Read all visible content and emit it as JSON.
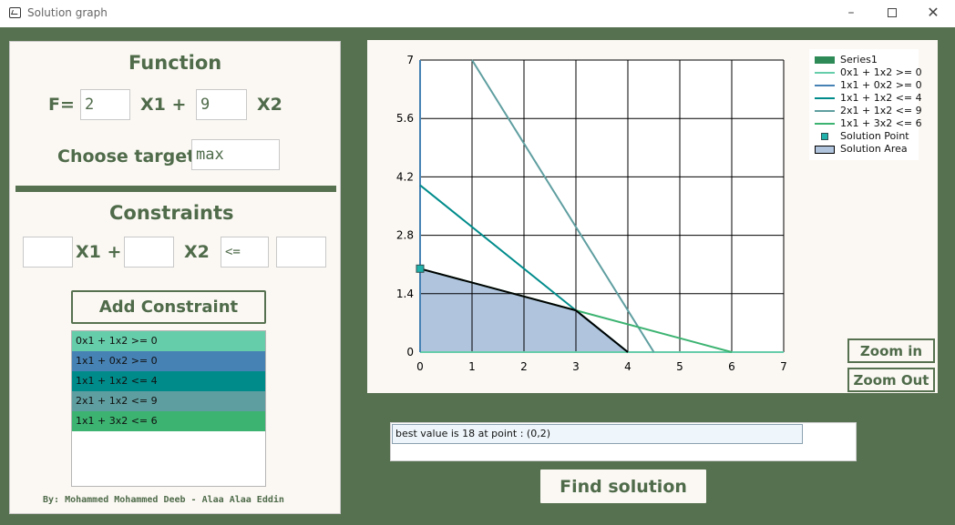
{
  "window": {
    "title": "Solution graph",
    "min_icon": "–",
    "close_icon": "✕"
  },
  "function_panel": {
    "title": "Function",
    "f_label": "F=",
    "coef1": "2",
    "x1_label": "X1 +",
    "coef2": "9",
    "x2_label": "X2",
    "target_label": "Choose target",
    "target_value": "max"
  },
  "constraints_panel": {
    "title": "Constraints",
    "coef1_value": "",
    "x1_label": "X1 +",
    "coef2_value": "",
    "x2_label": "X2",
    "op_value": "<=",
    "rhs_value": "",
    "add_button": "Add Constraint",
    "items": [
      {
        "label": "0x1 + 1x2 >= 0",
        "color": "#66cdaa"
      },
      {
        "label": "1x1 + 0x2 >= 0",
        "color": "#4682b4"
      },
      {
        "label": "1x1 + 1x2 <= 4",
        "color": "#008b8b"
      },
      {
        "label": "2x1 + 1x2 <= 9",
        "color": "#5f9ea0"
      },
      {
        "label": "1x1 + 3x2 <= 6",
        "color": "#3cb371"
      }
    ]
  },
  "credits": "By: Mohammed Mohammed Deeb - Alaa Alaa Eddin",
  "chart_data": {
    "type": "line",
    "xlim": [
      0,
      7
    ],
    "ylim": [
      0,
      7
    ],
    "x_ticks": [
      "0",
      "1",
      "2",
      "3",
      "4",
      "5",
      "6",
      "7"
    ],
    "y_ticks": [
      "0",
      "1.4",
      "2.8",
      "4.2",
      "5.6",
      "7"
    ],
    "grid": true,
    "legend_position": "top-right",
    "series": [
      {
        "name": "Series1",
        "kind": "bar",
        "color": "#2e8b57",
        "points": []
      },
      {
        "name": "0x1 + 1x2 >= 0",
        "kind": "line",
        "color": "#66cdaa",
        "points": [
          [
            0,
            0
          ],
          [
            7,
            0
          ]
        ]
      },
      {
        "name": "1x1 + 0x2 >= 0",
        "kind": "line",
        "color": "#4682b4",
        "points": [
          [
            0,
            0
          ],
          [
            0,
            7
          ]
        ]
      },
      {
        "name": "1x1 + 1x2 <= 4",
        "kind": "line",
        "color": "#008b8b",
        "points": [
          [
            0,
            4
          ],
          [
            4,
            0
          ]
        ]
      },
      {
        "name": "2x1 + 1x2 <= 9",
        "kind": "line",
        "color": "#5f9ea0",
        "points": [
          [
            1,
            7
          ],
          [
            4.5,
            0
          ]
        ]
      },
      {
        "name": "1x1 + 3x2 <= 6",
        "kind": "line",
        "color": "#3cb371",
        "points": [
          [
            0,
            2
          ],
          [
            6,
            0
          ]
        ]
      },
      {
        "name": "Solution Point",
        "kind": "marker",
        "color": "#20b2aa",
        "points": [
          [
            0,
            2
          ]
        ]
      },
      {
        "name": "Solution Area",
        "kind": "area",
        "color": "#b0c4de",
        "points": [
          [
            0,
            0
          ],
          [
            0,
            2
          ],
          [
            3,
            1
          ],
          [
            4,
            0
          ]
        ]
      }
    ]
  },
  "buttons": {
    "zoom_in": "Zoom in",
    "zoom_out": "Zoom Out",
    "find_solution": "Find solution"
  },
  "result_text": "best value is 18 at point : (0,2)"
}
